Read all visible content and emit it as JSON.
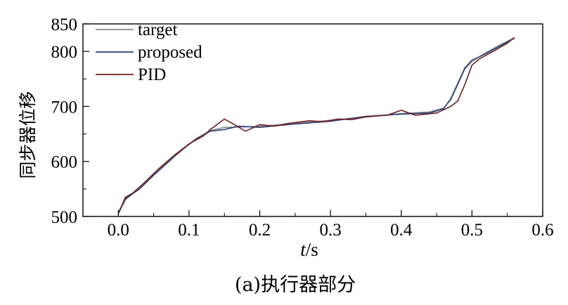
{
  "chart_data": {
    "type": "line",
    "xlabel": "t/s",
    "ylabel": "同步器位移",
    "caption": "(a)执行器部分",
    "xlim": [
      -0.05,
      0.6
    ],
    "ylim": [
      500,
      850
    ],
    "xticks": [
      0.0,
      0.1,
      0.2,
      0.3,
      0.4,
      0.5,
      0.6
    ],
    "xtick_labels": [
      "0.0",
      "0.1",
      "0.2",
      "0.3",
      "0.4",
      "0.5",
      "0.6"
    ],
    "yticks": [
      500,
      600,
      700,
      800,
      850
    ],
    "ytick_labels": [
      "500",
      "600",
      "700",
      "800",
      "850"
    ],
    "grid": false,
    "legend_position": "top-left",
    "series": [
      {
        "name": "target",
        "color": "#8a8a8a",
        "x": [
          0.0,
          0.01,
          0.03,
          0.05,
          0.07,
          0.09,
          0.11,
          0.13,
          0.15,
          0.18,
          0.2,
          0.25,
          0.3,
          0.35,
          0.4,
          0.44,
          0.46,
          0.47,
          0.48,
          0.49,
          0.5,
          0.52,
          0.54,
          0.56
        ],
        "y": [
          505,
          530,
          553,
          578,
          600,
          620,
          642,
          656,
          662,
          663,
          664,
          669,
          675,
          681,
          687,
          690,
          697,
          712,
          740,
          768,
          782,
          798,
          812,
          825
        ]
      },
      {
        "name": "proposed",
        "color": "#2e3f7a",
        "x": [
          0.0,
          0.01,
          0.03,
          0.05,
          0.07,
          0.09,
          0.11,
          0.13,
          0.15,
          0.17,
          0.2,
          0.25,
          0.3,
          0.35,
          0.4,
          0.44,
          0.46,
          0.47,
          0.48,
          0.49,
          0.5,
          0.52,
          0.54,
          0.56
        ],
        "y": [
          507,
          532,
          550,
          575,
          598,
          622,
          640,
          655,
          658,
          664,
          662,
          668,
          673,
          682,
          686,
          688,
          696,
          714,
          742,
          770,
          784,
          796,
          810,
          824
        ]
      },
      {
        "name": "PID",
        "color": "#6e1f1f",
        "x": [
          0.0,
          0.01,
          0.02,
          0.04,
          0.06,
          0.08,
          0.1,
          0.12,
          0.13,
          0.15,
          0.16,
          0.18,
          0.2,
          0.22,
          0.24,
          0.27,
          0.29,
          0.31,
          0.33,
          0.35,
          0.38,
          0.4,
          0.42,
          0.45,
          0.47,
          0.48,
          0.49,
          0.5,
          0.51,
          0.53,
          0.55,
          0.56
        ],
        "y": [
          505,
          535,
          542,
          565,
          590,
          612,
          632,
          646,
          658,
          677,
          670,
          655,
          667,
          664,
          669,
          674,
          672,
          677,
          676,
          681,
          684,
          693,
          684,
          688,
          700,
          710,
          740,
          775,
          786,
          800,
          815,
          825
        ]
      }
    ]
  }
}
